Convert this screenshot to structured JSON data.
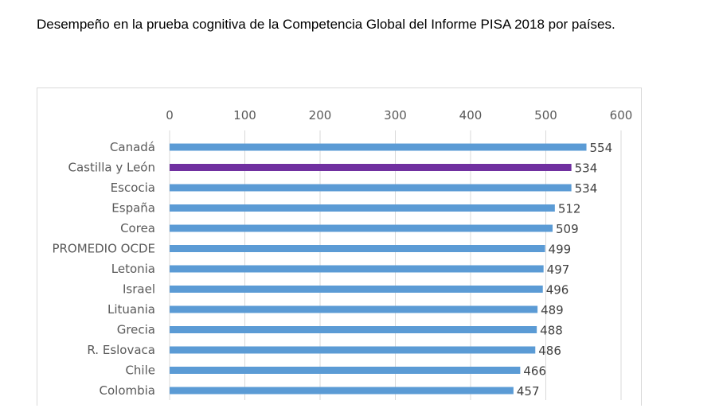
{
  "document": {
    "title": "Desempeño en la prueba cognitiva de la Competencia Global del Informe PISA 2018 por países."
  },
  "chart_data": {
    "type": "bar",
    "orientation": "horizontal",
    "title": "",
    "xlabel": "",
    "ylabel": "",
    "xlim": [
      0,
      600
    ],
    "ticks": [
      0,
      100,
      200,
      300,
      400,
      500,
      600
    ],
    "axis_position": "top",
    "grid": true,
    "legend": "none",
    "categories": [
      "Canadá",
      "Castilla y León",
      "Escocia",
      "España",
      "Corea",
      "PROMEDIO OCDE",
      "Letonia",
      "Israel",
      "Lituania",
      "Grecia",
      "R. Eslovaca",
      "Chile",
      "Colombia"
    ],
    "values": [
      554,
      534,
      534,
      512,
      509,
      499,
      497,
      496,
      489,
      488,
      486,
      466,
      457
    ],
    "colors": {
      "default": "#5b9bd5",
      "highlight": "#7030a0",
      "grid": "#d9d9d9"
    },
    "highlight_category": "Castilla y León"
  }
}
